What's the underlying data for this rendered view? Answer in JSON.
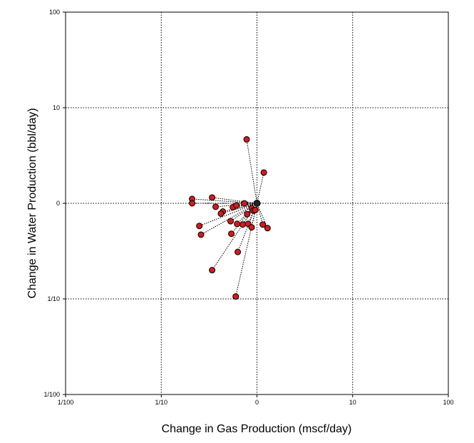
{
  "chart_data": {
    "type": "scatter",
    "title": "",
    "xlabel": "Change in Gas Production (mscf/day)",
    "ylabel": "Change in Water Production (bbl/day)",
    "x_scale": "log",
    "y_scale": "log",
    "xlim": [
      0.01,
      100
    ],
    "ylim": [
      0.01,
      100
    ],
    "x_ticks": [
      0.01,
      0.1,
      1,
      10,
      100
    ],
    "y_ticks": [
      0.01,
      0.1,
      1,
      10,
      100
    ],
    "x_tick_labels": [
      "1/100",
      "1/10",
      "0",
      "10",
      "100"
    ],
    "y_tick_labels": [
      "1/100",
      "1/10",
      "0",
      "10",
      "100"
    ],
    "grid": true,
    "center_point": {
      "x": 1.0,
      "y": 1.0
    },
    "point_color": "#d7191c",
    "center_color": "#222222",
    "points": [
      {
        "x": 0.78,
        "y": 4.66
      },
      {
        "x": 1.18,
        "y": 2.1
      },
      {
        "x": 0.34,
        "y": 1.15
      },
      {
        "x": 0.21,
        "y": 1.11
      },
      {
        "x": 0.21,
        "y": 1.0
      },
      {
        "x": 0.37,
        "y": 0.92
      },
      {
        "x": 0.56,
        "y": 0.91
      },
      {
        "x": 0.61,
        "y": 0.95
      },
      {
        "x": 0.74,
        "y": 1.0
      },
      {
        "x": 0.88,
        "y": 0.89
      },
      {
        "x": 0.92,
        "y": 0.84
      },
      {
        "x": 0.96,
        "y": 0.85
      },
      {
        "x": 0.44,
        "y": 0.82
      },
      {
        "x": 0.42,
        "y": 0.78
      },
      {
        "x": 0.79,
        "y": 0.77
      },
      {
        "x": 0.53,
        "y": 0.65
      },
      {
        "x": 0.62,
        "y": 0.61
      },
      {
        "x": 0.71,
        "y": 0.6
      },
      {
        "x": 0.81,
        "y": 0.61
      },
      {
        "x": 0.25,
        "y": 0.58
      },
      {
        "x": 0.88,
        "y": 0.56
      },
      {
        "x": 1.15,
        "y": 0.6
      },
      {
        "x": 1.29,
        "y": 0.55
      },
      {
        "x": 0.26,
        "y": 0.47
      },
      {
        "x": 0.54,
        "y": 0.48
      },
      {
        "x": 0.63,
        "y": 0.31
      },
      {
        "x": 0.34,
        "y": 0.2
      },
      {
        "x": 0.6,
        "y": 0.106
      }
    ]
  }
}
